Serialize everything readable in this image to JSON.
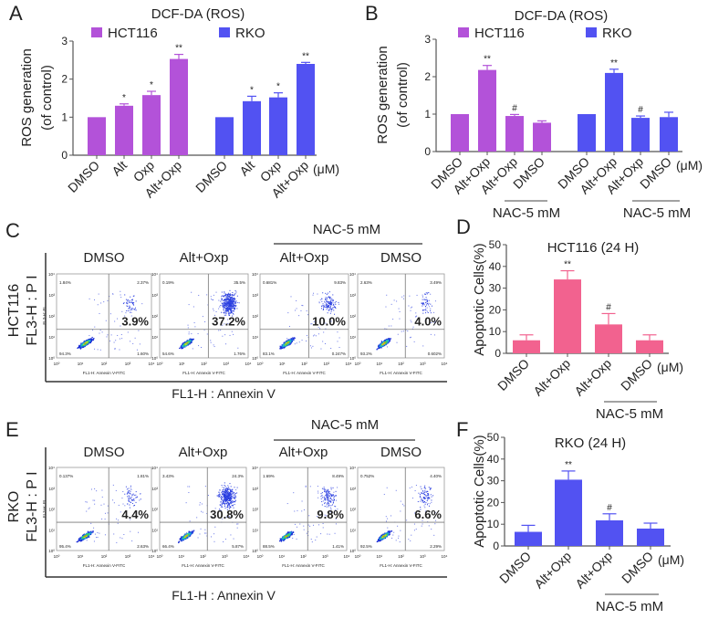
{
  "colors": {
    "hct116": "#b352d9",
    "rko": "#5252f2",
    "hct116_apoptosis": "#f2628f",
    "axis": "#555555"
  },
  "panel_labels": {
    "a": "A",
    "b": "B",
    "c": "C",
    "d": "D",
    "e": "E",
    "f": "F"
  },
  "chart_data": [
    {
      "panel": "A",
      "type": "bar",
      "title": "DCF-DA (ROS)",
      "ylabel": [
        "ROS generation",
        "(of control)"
      ],
      "ylim": [
        0,
        3
      ],
      "yticks": [
        "0",
        "1",
        "2",
        "3"
      ],
      "unit_label": "(μM)",
      "categories": [
        "DMSO",
        "Alt",
        "Oxp",
        "Alt+Oxp"
      ],
      "series": [
        {
          "name": "HCT116",
          "color": "#b352d9",
          "values": [
            1.0,
            1.3,
            1.58,
            2.53
          ],
          "errors": [
            0,
            0.05,
            0.1,
            0.12
          ],
          "significance": [
            "",
            "*",
            "*",
            "**"
          ]
        },
        {
          "name": "RKO",
          "color": "#5252f2",
          "values": [
            1.0,
            1.42,
            1.52,
            2.4
          ],
          "errors": [
            0,
            0.13,
            0.12,
            0.04
          ],
          "significance": [
            "",
            "*",
            "*",
            "**"
          ]
        }
      ]
    },
    {
      "panel": "B",
      "type": "bar",
      "title": "DCF-DA (ROS)",
      "ylabel": [
        "ROS generation",
        "(of control)"
      ],
      "ylim": [
        0,
        3
      ],
      "yticks": [
        "0",
        "1",
        "2",
        "3"
      ],
      "unit_label": "(μM)",
      "group_label": "NAC-5 mM",
      "categories": [
        "DMSO",
        "Alt+Oxp",
        "Alt+Oxp",
        "DMSO"
      ],
      "series": [
        {
          "name": "HCT116",
          "color": "#b352d9",
          "values": [
            1.0,
            2.18,
            0.95,
            0.77
          ],
          "errors": [
            0,
            0.12,
            0.04,
            0.05
          ],
          "significance": [
            "",
            "**",
            "#",
            ""
          ]
        },
        {
          "name": "RKO",
          "color": "#5252f2",
          "values": [
            1.0,
            2.1,
            0.9,
            0.92
          ],
          "errors": [
            0,
            0.1,
            0.05,
            0.13
          ],
          "significance": [
            "",
            "**",
            "#",
            ""
          ]
        }
      ]
    },
    {
      "panel": "D",
      "type": "bar",
      "title": "HCT116 (24 H)",
      "ylabel": [
        "Apoptotic Cells(%)"
      ],
      "ylim": [
        0,
        50
      ],
      "yticks": [
        "0",
        "10",
        "20",
        "30",
        "40",
        "50"
      ],
      "unit_label": "(μM)",
      "group_label": "NAC-5 mM",
      "categories": [
        "DMSO",
        "Alt+Oxp",
        "Alt+Oxp",
        "DMSO"
      ],
      "series": [
        {
          "color": "#f2628f",
          "values": [
            6,
            34,
            13.3,
            6
          ],
          "errors": [
            2.5,
            4,
            5,
            2.5
          ],
          "significance": [
            "",
            "**",
            "#",
            ""
          ]
        }
      ]
    },
    {
      "panel": "F",
      "type": "bar",
      "title": "RKO (24 H)",
      "ylabel": [
        "Apoptotic Cells(%)"
      ],
      "ylim": [
        0,
        50
      ],
      "yticks": [
        "0",
        "10",
        "20",
        "30",
        "40",
        "50"
      ],
      "unit_label": "(μM)",
      "group_label": "NAC-5 mM",
      "categories": [
        "DMSO",
        "Alt+Oxp",
        "Alt+Oxp",
        "DMSO"
      ],
      "series": [
        {
          "color": "#5252f2",
          "values": [
            6.5,
            30.5,
            11.8,
            8
          ],
          "errors": [
            3,
            4,
            3,
            2.5
          ],
          "significance": [
            "",
            "**",
            "#",
            ""
          ]
        }
      ]
    },
    {
      "panel": "C",
      "type": "scatter",
      "subtype": "flow-cytometry",
      "ylabel": [
        "HCT116",
        "FL3-H : P I"
      ],
      "xlabel": "FL1-H : Annexin V",
      "group_label": "NAC-5 mM",
      "plot_xaxis_title": "FL1-H: Annexin V-FITC",
      "plot_yaxis_title": "FL3-H: PI",
      "axis_ticks": [
        "10⁰",
        "10¹",
        "10²",
        "10³",
        "10⁴"
      ],
      "plots": [
        {
          "title": "DMSO",
          "apoptotic": "3.9%",
          "q1": "1.84%",
          "q2": "2.37%",
          "q3": "1.60%",
          "q4": "94.3%"
        },
        {
          "title": "Alt+Oxp",
          "apoptotic": "37.2%",
          "q1": "0.19%",
          "q2": "35.5%",
          "q3": "1.76%",
          "q4": "54.6%"
        },
        {
          "title": "Alt+Oxp",
          "apoptotic": "10.0%",
          "q1": "0.681%",
          "q2": "9.83%",
          "q3": "0.247%",
          "q4": "83.1%"
        },
        {
          "title": "DMSO",
          "apoptotic": "4.0%",
          "q1": "2.63%",
          "q2": "3.49%",
          "q3": "0.602%",
          "q4": "93.2%"
        }
      ]
    },
    {
      "panel": "E",
      "type": "scatter",
      "subtype": "flow-cytometry",
      "ylabel": [
        "RKO",
        "FL3-H : P I"
      ],
      "xlabel": "FL1-H : Annexin V",
      "group_label": "NAC-5 mM",
      "plot_xaxis_title": "FL1-H: Annexin V-FITC",
      "plot_yaxis_title": "FL3-H: PI",
      "axis_ticks": [
        "10⁰",
        "10¹",
        "10²",
        "10³",
        "10⁴"
      ],
      "plots": [
        {
          "title": "DMSO",
          "apoptotic": "4.4%",
          "q1": "0.137%",
          "q2": "1.81%",
          "q3": "2.63%",
          "q4": "95.4%"
        },
        {
          "title": "Alt+Oxp",
          "apoptotic": "30.8%",
          "q1": "3.43%",
          "q2": "24.3%",
          "q3": "5.87%",
          "q4": "66.4%"
        },
        {
          "title": "Alt+Oxp",
          "apoptotic": "9.8%",
          "q1": "1.69%",
          "q2": "8.49%",
          "q3": "1.41%",
          "q4": "88.5%"
        },
        {
          "title": "DMSO",
          "apoptotic": "6.6%",
          "q1": "0.752%",
          "q2": "4.40%",
          "q3": "2.29%",
          "q4": "92.5%"
        }
      ]
    }
  ]
}
